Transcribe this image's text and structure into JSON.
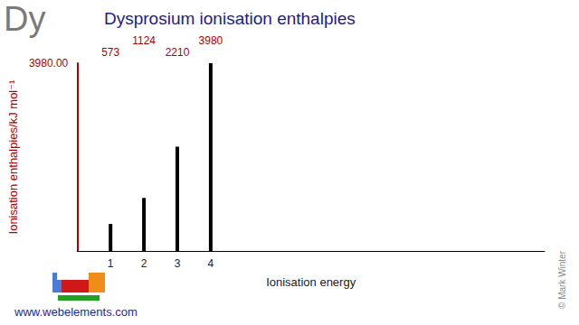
{
  "chart_data": {
    "type": "bar",
    "title": "Dysprosium ionisation enthalpies",
    "x_label": "Ionisation energy",
    "y_label": "Ionisation enthalpies/kJ mol⁻¹",
    "x": [
      1,
      2,
      3,
      4
    ],
    "values": [
      573,
      1124,
      2210,
      3980
    ],
    "color": "#000000",
    "xlim": [
      0,
      14
    ],
    "xticks": [
      1,
      2,
      3,
      4
    ],
    "ylim": [
      0,
      3980
    ],
    "yticks": [
      {
        "value": 3980,
        "label": "3980.00"
      }
    ],
    "grid": false,
    "data_labels": true,
    "annotations": [
      "Dy",
      "© Mark Winter",
      "www.webelements.com"
    ]
  }
}
